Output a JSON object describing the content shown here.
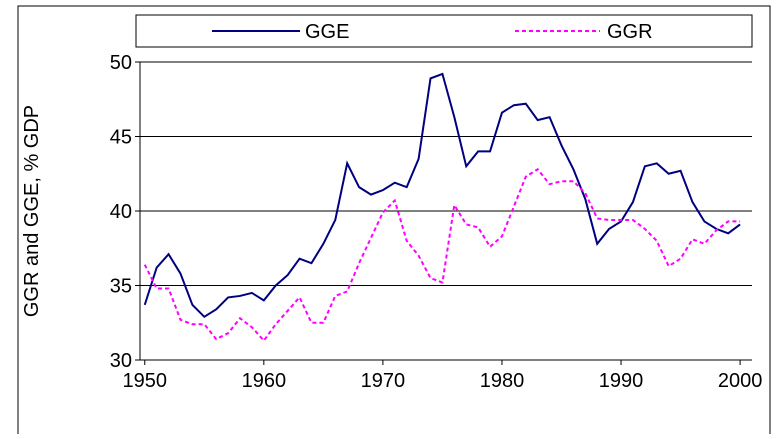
{
  "chart_data": {
    "type": "line",
    "y_label": "GGR and GGE, % GDP",
    "x": [
      1950,
      1951,
      1952,
      1953,
      1954,
      1955,
      1956,
      1957,
      1958,
      1959,
      1960,
      1961,
      1962,
      1963,
      1964,
      1965,
      1966,
      1967,
      1968,
      1969,
      1970,
      1971,
      1972,
      1973,
      1974,
      1975,
      1976,
      1977,
      1978,
      1979,
      1980,
      1981,
      1982,
      1983,
      1984,
      1985,
      1986,
      1987,
      1988,
      1989,
      1990,
      1991,
      1992,
      1993,
      1994,
      1995,
      1996,
      1997,
      1998,
      1999,
      2000
    ],
    "series": [
      {
        "name": "GGE",
        "color": "#000080",
        "dash": false,
        "values": [
          33.7,
          36.2,
          37.1,
          35.8,
          33.7,
          32.9,
          33.4,
          34.2,
          34.3,
          34.5,
          34.0,
          35.0,
          35.7,
          36.8,
          36.5,
          37.8,
          39.4,
          43.2,
          41.6,
          41.1,
          41.4,
          41.9,
          41.6,
          43.5,
          48.9,
          49.2,
          46.3,
          43.0,
          44.0,
          44.0,
          46.6,
          47.1,
          47.2,
          46.1,
          46.3,
          44.4,
          42.8,
          40.8,
          37.8,
          38.8,
          39.3,
          40.6,
          43.0,
          43.2,
          42.5,
          42.7,
          40.6,
          39.3,
          38.8,
          38.5,
          39.1
        ]
      },
      {
        "name": "GGR",
        "color": "#ff00ff",
        "dash": true,
        "values": [
          36.4,
          34.8,
          34.8,
          32.7,
          32.4,
          32.4,
          31.4,
          31.8,
          32.8,
          32.2,
          31.3,
          32.4,
          33.3,
          34.2,
          32.5,
          32.5,
          34.3,
          34.6,
          36.5,
          38.2,
          39.9,
          40.7,
          38.0,
          37.0,
          35.5,
          35.2,
          40.4,
          39.1,
          38.9,
          37.6,
          38.3,
          40.3,
          42.3,
          42.8,
          41.8,
          42.0,
          42.0,
          41.2,
          39.5,
          39.4,
          39.4,
          39.4,
          38.8,
          38.0,
          36.3,
          36.8,
          38.1,
          37.8,
          38.7,
          39.3,
          39.3
        ]
      }
    ],
    "xlim": [
      1949.6,
      2001
    ],
    "xticks": [
      1950,
      1960,
      1970,
      1980,
      1990,
      2000
    ],
    "ylim": [
      30,
      50
    ],
    "yticks": [
      30,
      35,
      40,
      45,
      50
    ],
    "grid": true,
    "legend": "top"
  }
}
